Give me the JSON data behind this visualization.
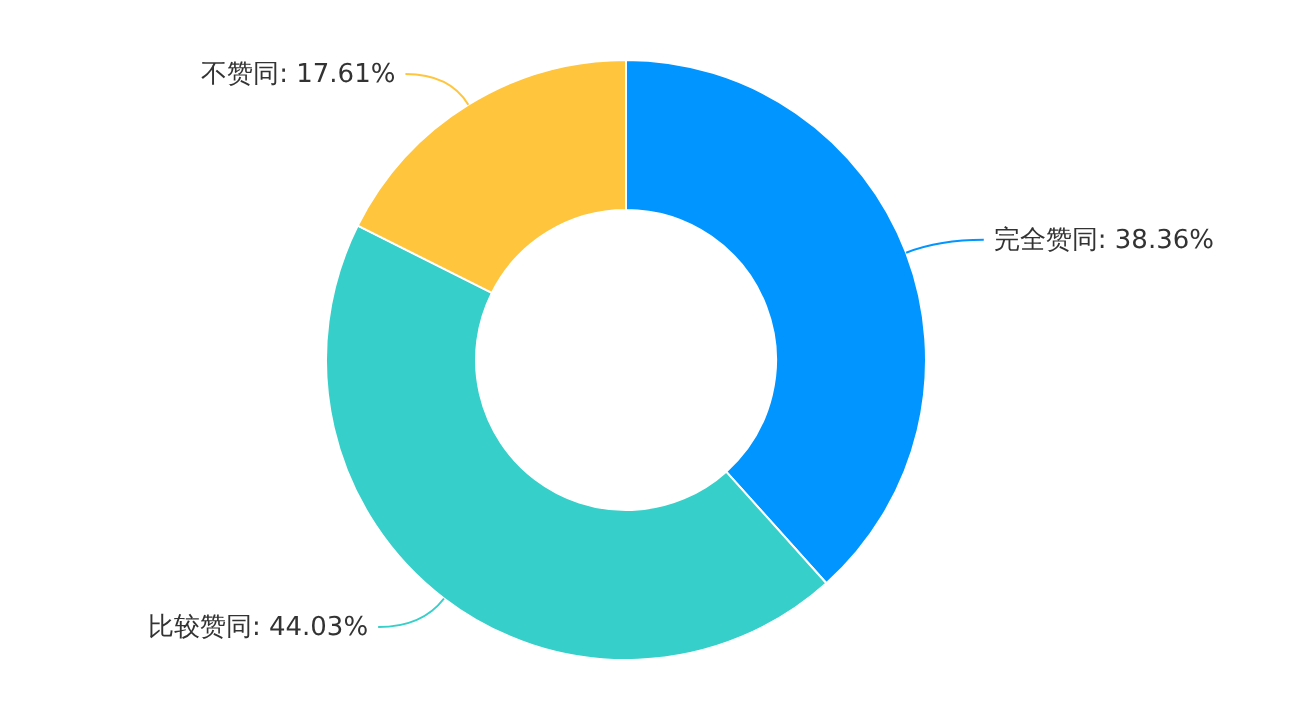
{
  "chart_data": {
    "type": "donut",
    "categories": [
      "完全赞同",
      "比较赞同",
      "不赞同"
    ],
    "values": [
      38.36,
      44.03,
      17.61
    ],
    "value_labels": [
      "38.36%",
      "44.03%",
      "17.61%"
    ],
    "colors": [
      "#0095ff",
      "#36cfc9",
      "#ffc53d"
    ]
  }
}
